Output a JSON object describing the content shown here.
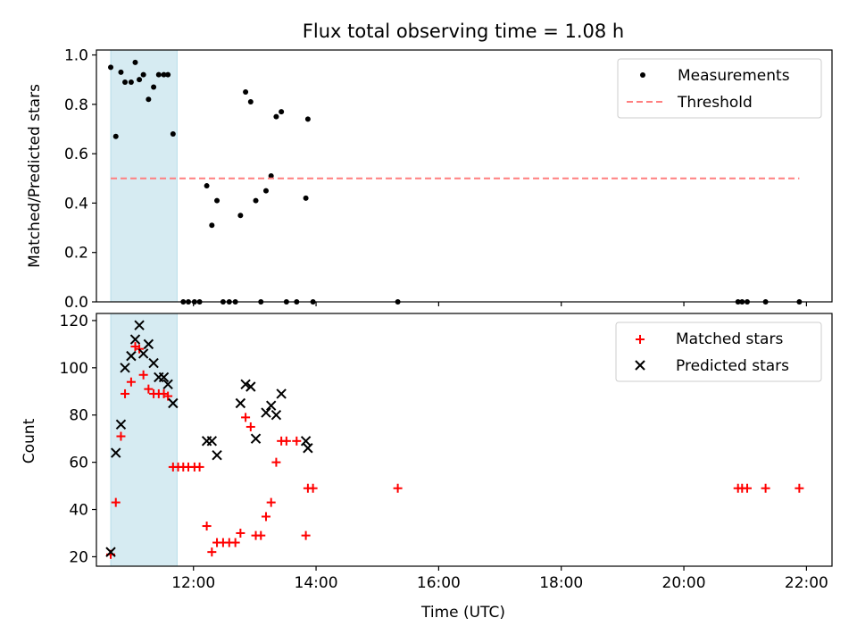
{
  "figure_title": "Flux total observing time = 1.08 h",
  "colors": {
    "measurement": "#000000",
    "threshold": "#ff7f7f",
    "matched": "#ff0000",
    "predicted": "#000000",
    "shade": "#add8e6"
  },
  "chart_data": [
    {
      "type": "scatter",
      "title": "Flux total observing time = 1.08 h",
      "ylabel": "Matched/Predicted stars",
      "xlabel": "",
      "xlim": [
        "10:25",
        "22:25"
      ],
      "ylim": [
        0.0,
        1.02
      ],
      "x_ticks": [
        "12:00",
        "14:00",
        "16:00",
        "18:00",
        "20:00",
        "22:00"
      ],
      "x_tick_labels_visible": false,
      "y_ticks": [
        "0.0",
        "0.2",
        "0.4",
        "0.6",
        "0.8",
        "1.0"
      ],
      "shaded_span": {
        "x": [
          "10:39",
          "11:44"
        ]
      },
      "legend": {
        "position": "upper right",
        "entries": [
          "Measurements",
          "Threshold"
        ]
      },
      "series": [
        {
          "name": "Measurements",
          "marker": "dot",
          "points": [
            [
              "10:39",
              0.95
            ],
            [
              "10:44",
              0.67
            ],
            [
              "10:49",
              0.93
            ],
            [
              "10:53",
              0.89
            ],
            [
              "10:59",
              0.89
            ],
            [
              "11:03",
              0.97
            ],
            [
              "11:07",
              0.9
            ],
            [
              "11:11",
              0.92
            ],
            [
              "11:16",
              0.82
            ],
            [
              "11:21",
              0.87
            ],
            [
              "11:26",
              0.92
            ],
            [
              "11:31",
              0.92
            ],
            [
              "11:35",
              0.92
            ],
            [
              "11:40",
              0.68
            ],
            [
              "11:50",
              0.0
            ],
            [
              "11:55",
              0.0
            ],
            [
              "12:01",
              0.0
            ],
            [
              "12:06",
              0.0
            ],
            [
              "12:13",
              0.47
            ],
            [
              "12:18",
              0.31
            ],
            [
              "12:23",
              0.41
            ],
            [
              "12:29",
              0.0
            ],
            [
              "12:35",
              0.0
            ],
            [
              "12:41",
              0.0
            ],
            [
              "12:46",
              0.35
            ],
            [
              "12:51",
              0.85
            ],
            [
              "12:56",
              0.81
            ],
            [
              "13:01",
              0.41
            ],
            [
              "13:06",
              0.0
            ],
            [
              "13:11",
              0.45
            ],
            [
              "13:16",
              0.51
            ],
            [
              "13:21",
              0.75
            ],
            [
              "13:26",
              0.77
            ],
            [
              "13:31",
              0.0
            ],
            [
              "13:41",
              0.0
            ],
            [
              "13:50",
              0.42
            ],
            [
              "13:52",
              0.74
            ],
            [
              "13:57",
              0.0
            ],
            [
              "15:20",
              0.0
            ],
            [
              "20:53",
              0.0
            ],
            [
              "20:57",
              0.0
            ],
            [
              "21:02",
              0.0
            ],
            [
              "21:20",
              0.0
            ],
            [
              "21:53",
              0.0
            ]
          ]
        },
        {
          "name": "Threshold",
          "style": "dashed",
          "points": [
            [
              "10:39",
              0.5
            ],
            [
              "21:53",
              0.5
            ]
          ]
        }
      ]
    },
    {
      "type": "scatter",
      "title": "",
      "ylabel": "Count",
      "xlabel": "Time (UTC)",
      "xlim": [
        "10:25",
        "22:25"
      ],
      "ylim": [
        16,
        123
      ],
      "x_ticks": [
        "12:00",
        "14:00",
        "16:00",
        "18:00",
        "20:00",
        "22:00"
      ],
      "y_ticks": [
        "20",
        "40",
        "60",
        "80",
        "100",
        "120"
      ],
      "shaded_span": {
        "x": [
          "10:39",
          "11:44"
        ]
      },
      "legend": {
        "position": "upper right",
        "entries": [
          "Matched stars",
          "Predicted stars"
        ]
      },
      "series": [
        {
          "name": "Matched stars",
          "marker": "plus",
          "points": [
            [
              "10:39",
              21
            ],
            [
              "10:44",
              43
            ],
            [
              "10:49",
              71
            ],
            [
              "10:53",
              89
            ],
            [
              "10:59",
              94
            ],
            [
              "11:03",
              109
            ],
            [
              "11:07",
              108
            ],
            [
              "11:11",
              97
            ],
            [
              "11:16",
              91
            ],
            [
              "11:21",
              89
            ],
            [
              "11:26",
              89
            ],
            [
              "11:31",
              89
            ],
            [
              "11:35",
              88
            ],
            [
              "11:40",
              58
            ],
            [
              "11:45",
              58
            ],
            [
              "11:50",
              58
            ],
            [
              "11:55",
              58
            ],
            [
              "12:01",
              58
            ],
            [
              "12:06",
              58
            ],
            [
              "12:13",
              33
            ],
            [
              "12:18",
              22
            ],
            [
              "12:23",
              26
            ],
            [
              "12:29",
              26
            ],
            [
              "12:35",
              26
            ],
            [
              "12:41",
              26
            ],
            [
              "12:46",
              30
            ],
            [
              "12:51",
              79
            ],
            [
              "12:56",
              75
            ],
            [
              "13:01",
              29
            ],
            [
              "13:06",
              29
            ],
            [
              "13:11",
              37
            ],
            [
              "13:16",
              43
            ],
            [
              "13:21",
              60
            ],
            [
              "13:26",
              69
            ],
            [
              "13:31",
              69
            ],
            [
              "13:41",
              69
            ],
            [
              "13:50",
              29
            ],
            [
              "13:52",
              49
            ],
            [
              "13:57",
              49
            ],
            [
              "15:20",
              49
            ],
            [
              "20:53",
              49
            ],
            [
              "20:57",
              49
            ],
            [
              "21:02",
              49
            ],
            [
              "21:20",
              49
            ],
            [
              "21:53",
              49
            ]
          ]
        },
        {
          "name": "Predicted stars",
          "marker": "x",
          "points": [
            [
              "10:39",
              22
            ],
            [
              "10:44",
              64
            ],
            [
              "10:49",
              76
            ],
            [
              "10:53",
              100
            ],
            [
              "10:59",
              105
            ],
            [
              "11:03",
              112
            ],
            [
              "11:07",
              118
            ],
            [
              "11:11",
              106
            ],
            [
              "11:16",
              110
            ],
            [
              "11:21",
              102
            ],
            [
              "11:26",
              96
            ],
            [
              "11:31",
              96
            ],
            [
              "11:35",
              93
            ],
            [
              "11:40",
              85
            ],
            [
              "12:13",
              69
            ],
            [
              "12:18",
              69
            ],
            [
              "12:23",
              63
            ],
            [
              "12:46",
              85
            ],
            [
              "12:51",
              93
            ],
            [
              "12:56",
              92
            ],
            [
              "13:01",
              70
            ],
            [
              "13:11",
              81
            ],
            [
              "13:16",
              84
            ],
            [
              "13:21",
              80
            ],
            [
              "13:26",
              89
            ],
            [
              "13:50",
              69
            ],
            [
              "13:52",
              66
            ]
          ]
        }
      ]
    }
  ]
}
